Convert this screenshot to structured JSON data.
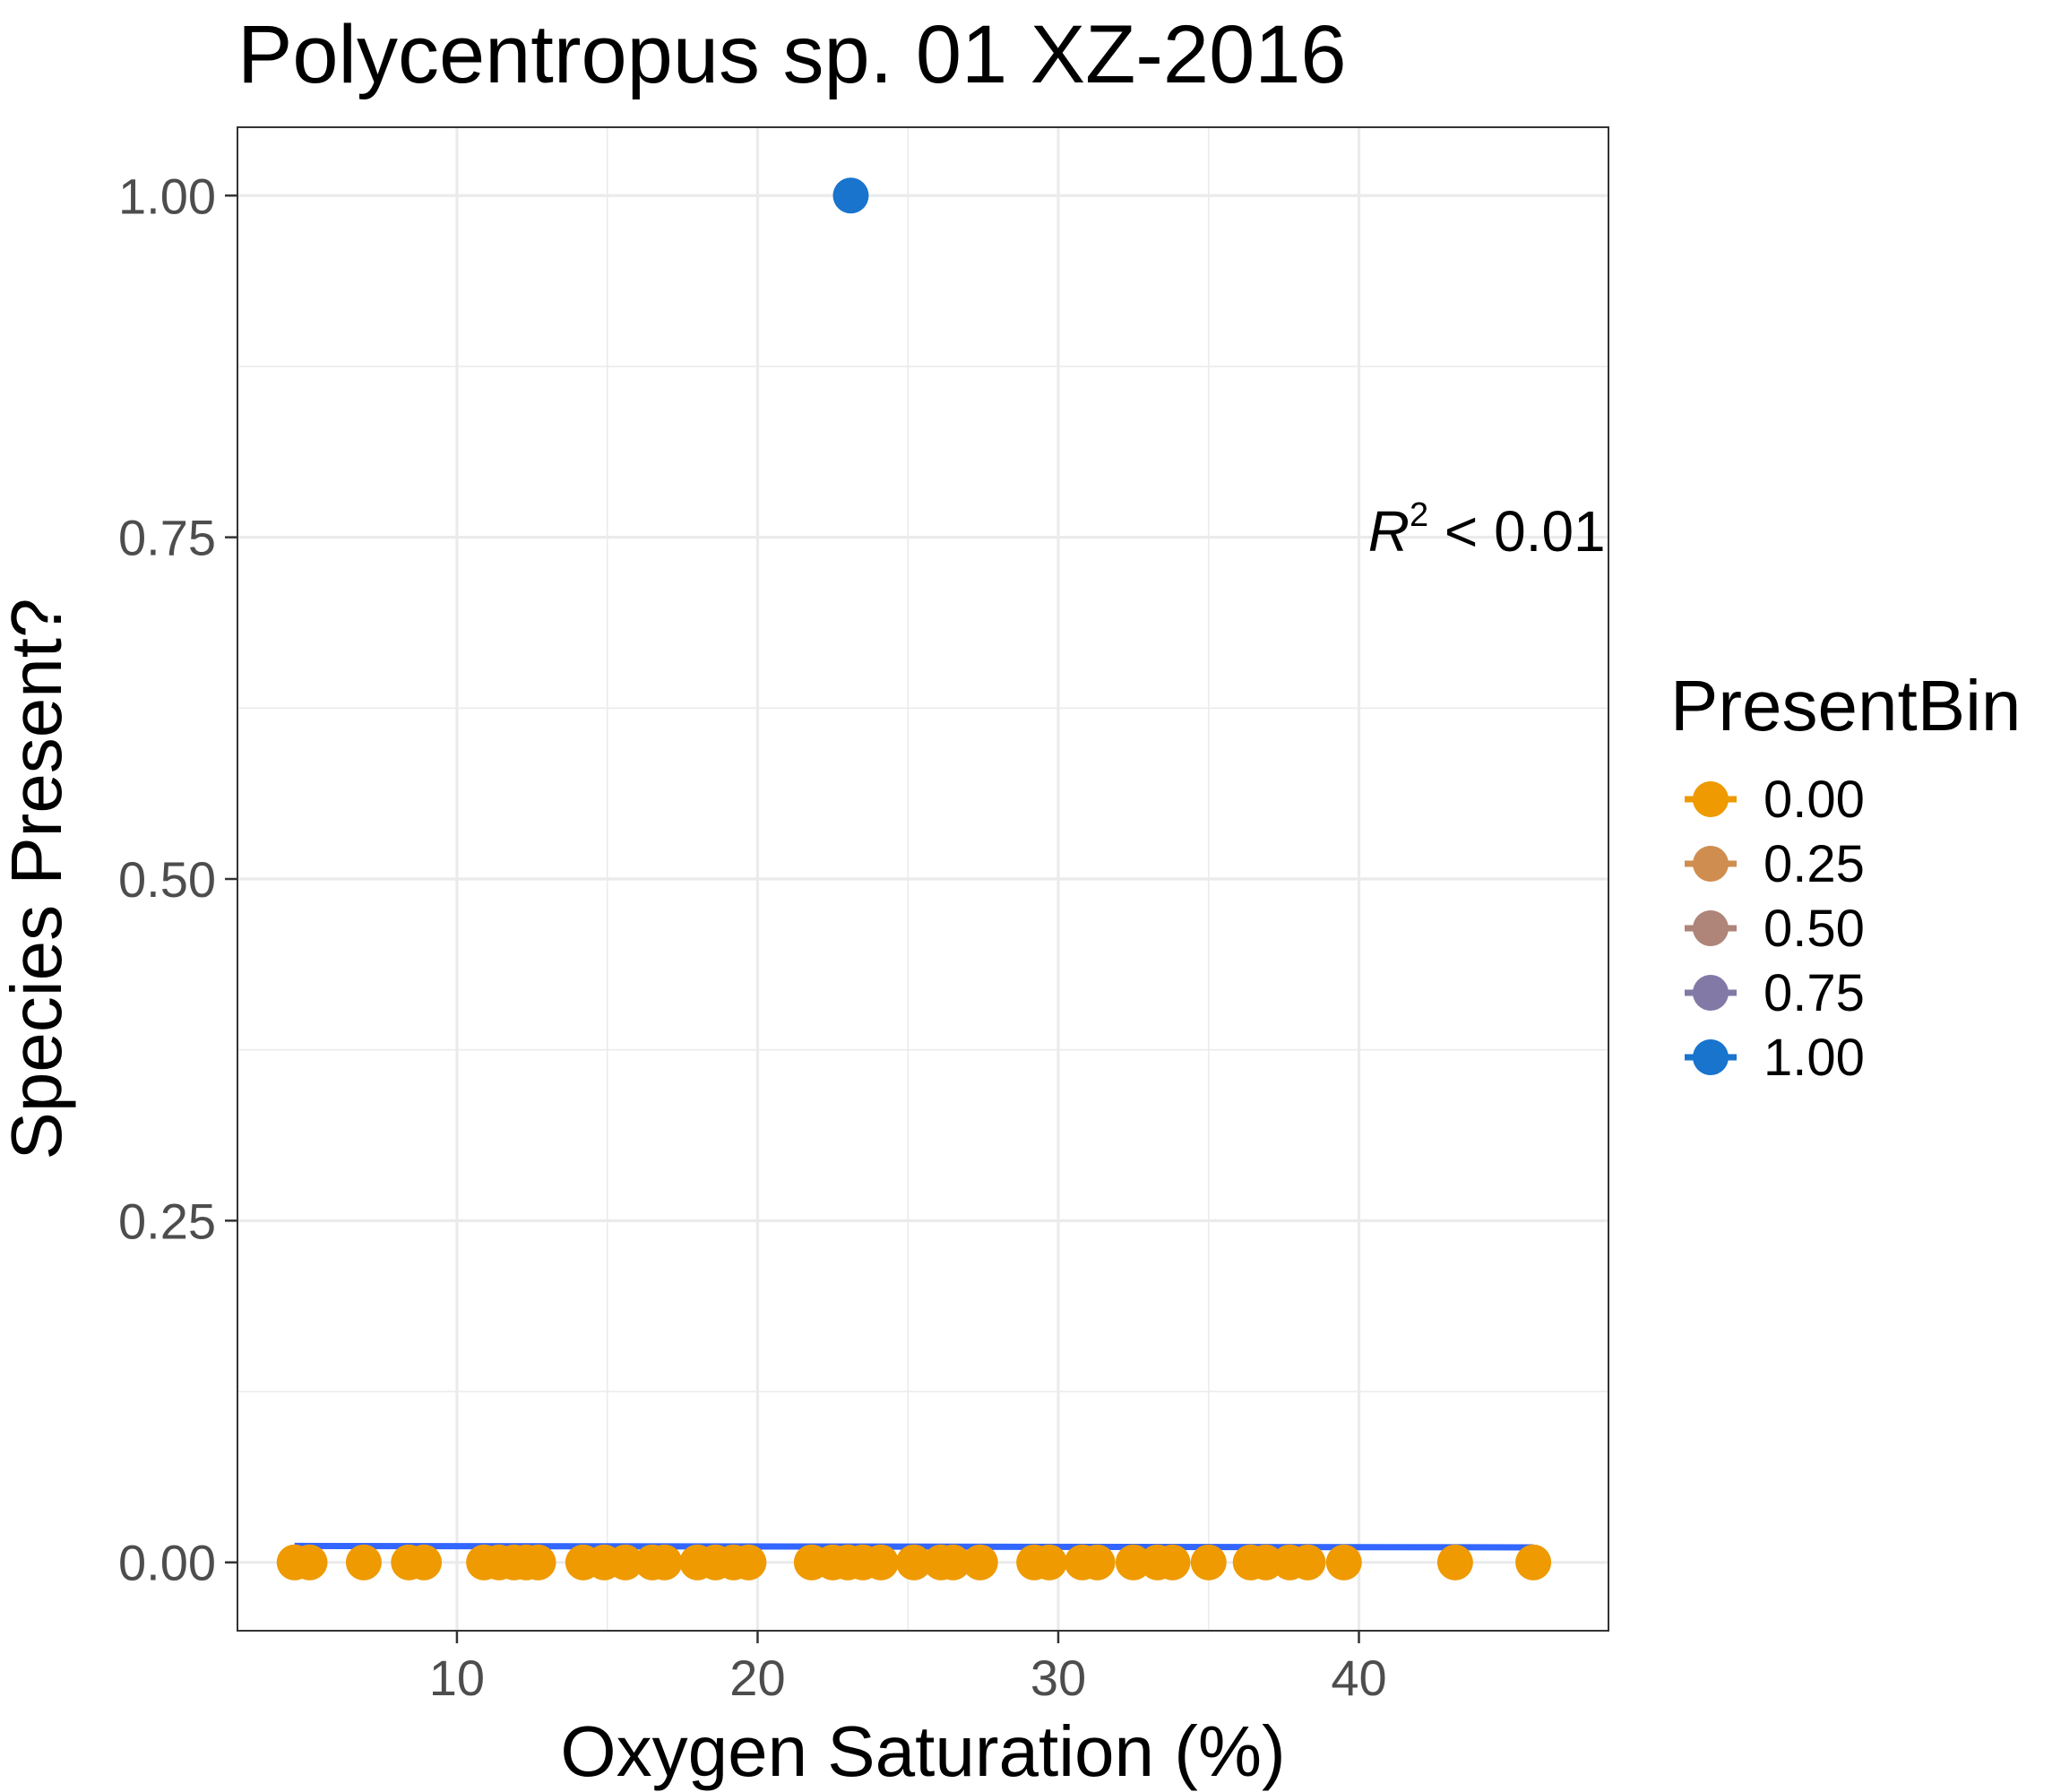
{
  "chart_data": {
    "type": "scatter",
    "title": "Polycentropus sp. 01 XZ-2016",
    "xlabel": "Oxygen Saturation (%)",
    "ylabel": "Species Present?",
    "xlim": [
      2.7,
      48.3
    ],
    "ylim": [
      -0.05,
      1.05
    ],
    "x_ticks": [
      10,
      20,
      30,
      40
    ],
    "x_tick_labels": [
      "10",
      "20",
      "30",
      "40"
    ],
    "y_ticks": [
      0,
      0.25,
      0.5,
      0.75,
      1
    ],
    "y_tick_labels": [
      "0.00",
      "0.25",
      "0.50",
      "0.75",
      "1.00"
    ],
    "grid": true,
    "legend": {
      "title": "PresentBin",
      "position": "right",
      "entries": [
        {
          "label": "0.00",
          "color": "#EE9A00"
        },
        {
          "label": "0.25",
          "color": "#CF8E50"
        },
        {
          "label": "0.50",
          "color": "#AF8479"
        },
        {
          "label": "0.75",
          "color": "#8279A6"
        },
        {
          "label": "1.00",
          "color": "#1874CD"
        }
      ]
    },
    "points": [
      {
        "x": 4.6,
        "y": 0,
        "bin": 0
      },
      {
        "x": 5.1,
        "y": 0,
        "bin": 0
      },
      {
        "x": 6.9,
        "y": 0,
        "bin": 0
      },
      {
        "x": 8.4,
        "y": 0,
        "bin": 0
      },
      {
        "x": 8.9,
        "y": 0,
        "bin": 0
      },
      {
        "x": 10.9,
        "y": 0,
        "bin": 0
      },
      {
        "x": 11.4,
        "y": 0,
        "bin": 0
      },
      {
        "x": 11.9,
        "y": 0,
        "bin": 0
      },
      {
        "x": 12.3,
        "y": 0,
        "bin": 0
      },
      {
        "x": 12.7,
        "y": 0,
        "bin": 0
      },
      {
        "x": 14.2,
        "y": 0,
        "bin": 0
      },
      {
        "x": 14.9,
        "y": 0,
        "bin": 0
      },
      {
        "x": 15.6,
        "y": 0,
        "bin": 0
      },
      {
        "x": 16.5,
        "y": 0,
        "bin": 0
      },
      {
        "x": 16.9,
        "y": 0,
        "bin": 0
      },
      {
        "x": 18.0,
        "y": 0,
        "bin": 0
      },
      {
        "x": 18.6,
        "y": 0,
        "bin": 0
      },
      {
        "x": 19.2,
        "y": 0,
        "bin": 0
      },
      {
        "x": 19.7,
        "y": 0,
        "bin": 0
      },
      {
        "x": 21.8,
        "y": 0,
        "bin": 0
      },
      {
        "x": 22.5,
        "y": 0,
        "bin": 0
      },
      {
        "x": 23.0,
        "y": 0,
        "bin": 0
      },
      {
        "x": 23.5,
        "y": 0,
        "bin": 0
      },
      {
        "x": 24.1,
        "y": 0,
        "bin": 0
      },
      {
        "x": 25.2,
        "y": 0,
        "bin": 0
      },
      {
        "x": 26.1,
        "y": 0,
        "bin": 0
      },
      {
        "x": 26.5,
        "y": 0,
        "bin": 0
      },
      {
        "x": 27.4,
        "y": 0,
        "bin": 0
      },
      {
        "x": 29.2,
        "y": 0,
        "bin": 0
      },
      {
        "x": 29.7,
        "y": 0,
        "bin": 0
      },
      {
        "x": 30.8,
        "y": 0,
        "bin": 0
      },
      {
        "x": 31.3,
        "y": 0,
        "bin": 0
      },
      {
        "x": 32.5,
        "y": 0,
        "bin": 0
      },
      {
        "x": 33.3,
        "y": 0,
        "bin": 0
      },
      {
        "x": 33.8,
        "y": 0,
        "bin": 0
      },
      {
        "x": 35.0,
        "y": 0,
        "bin": 0
      },
      {
        "x": 36.4,
        "y": 0,
        "bin": 0
      },
      {
        "x": 36.9,
        "y": 0,
        "bin": 0
      },
      {
        "x": 37.7,
        "y": 0,
        "bin": 0
      },
      {
        "x": 38.3,
        "y": 0,
        "bin": 0
      },
      {
        "x": 39.5,
        "y": 0,
        "bin": 0
      },
      {
        "x": 43.2,
        "y": 0,
        "bin": 0
      },
      {
        "x": 45.8,
        "y": 0,
        "bin": 0
      },
      {
        "x": 23.1,
        "y": 1,
        "bin": 1
      }
    ],
    "fit_line": {
      "color": "#3366FF",
      "x": [
        4.6,
        45.8
      ],
      "y": [
        0.012,
        0.011
      ]
    },
    "annotation": {
      "text_r": "R",
      "text_sup": "2",
      "text_rest": " < 0.01",
      "x": 48.2,
      "y": 0.74
    }
  }
}
